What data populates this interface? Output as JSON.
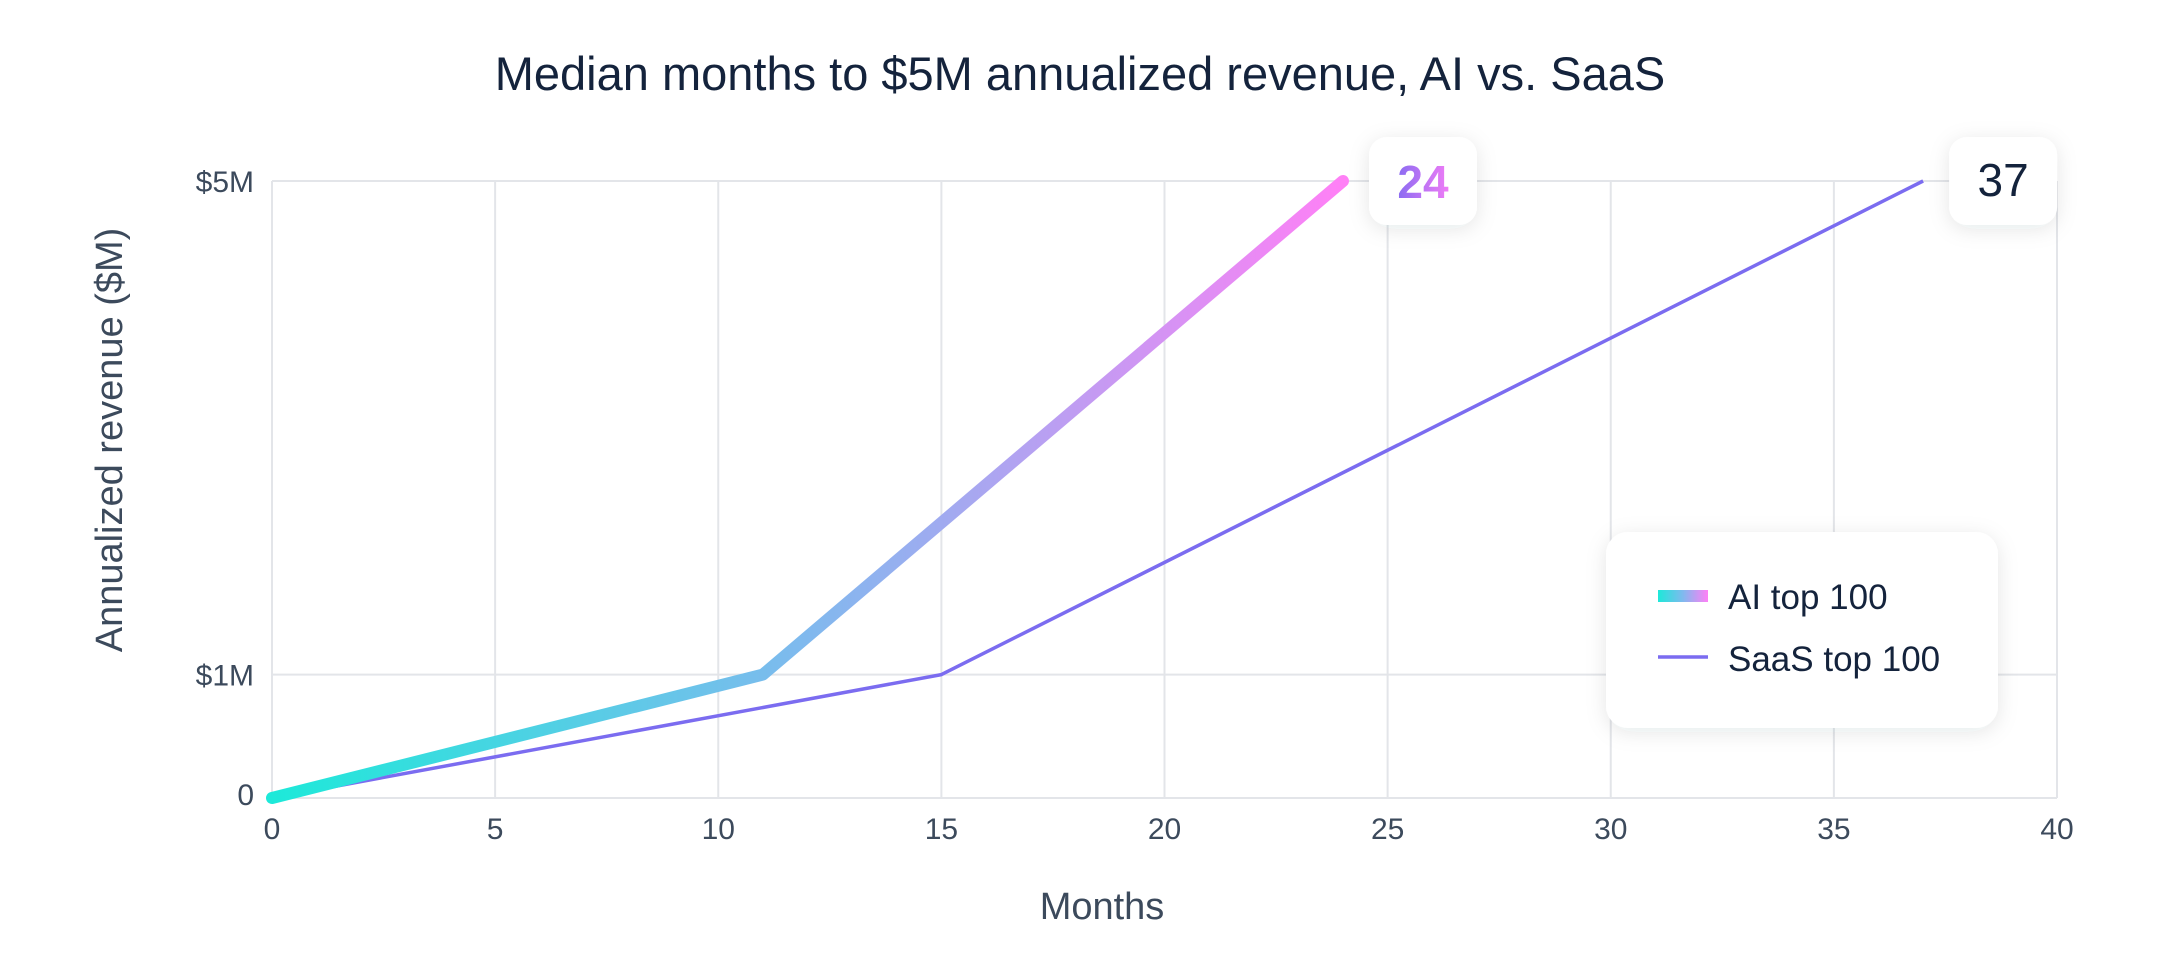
{
  "chart_data": {
    "type": "line",
    "title": "Median months to $5M annualized revenue, AI vs. SaaS",
    "xlabel": "Months",
    "ylabel": "Annualized revenue ($M)",
    "xlim": [
      0,
      40
    ],
    "ylim": [
      0,
      5
    ],
    "x_ticks": [
      {
        "value": 0,
        "label": "0"
      },
      {
        "value": 5,
        "label": "5"
      },
      {
        "value": 10,
        "label": "10"
      },
      {
        "value": 15,
        "label": "15"
      },
      {
        "value": 20,
        "label": "20"
      },
      {
        "value": 25,
        "label": "25"
      },
      {
        "value": 30,
        "label": "30"
      },
      {
        "value": 35,
        "label": "35"
      },
      {
        "value": 40,
        "label": "40"
      }
    ],
    "y_ticks": [
      {
        "value": 0,
        "label": "0"
      },
      {
        "value": 1,
        "label": "$1M"
      },
      {
        "value": 5,
        "label": "$5M"
      }
    ],
    "grid": true,
    "legend_position": "bottom-right",
    "series": [
      {
        "name": "AI top 100",
        "x": [
          0,
          11,
          24
        ],
        "y": [
          0,
          1,
          5
        ],
        "end_label": "24",
        "gradient": [
          "#1de9d9",
          "#80b9ee",
          "#ff80f6"
        ],
        "end_label_gradient": [
          "#8a6cf2",
          "#f07cf6"
        ]
      },
      {
        "name": "SaaS top 100",
        "x": [
          0,
          15,
          37
        ],
        "y": [
          0,
          1,
          5
        ],
        "end_label": "37",
        "color": "#7b6cf0"
      }
    ],
    "colors": {
      "grid": "#e3e5e9",
      "text": "#14233c",
      "muted_text": "#3c4a5c"
    }
  }
}
